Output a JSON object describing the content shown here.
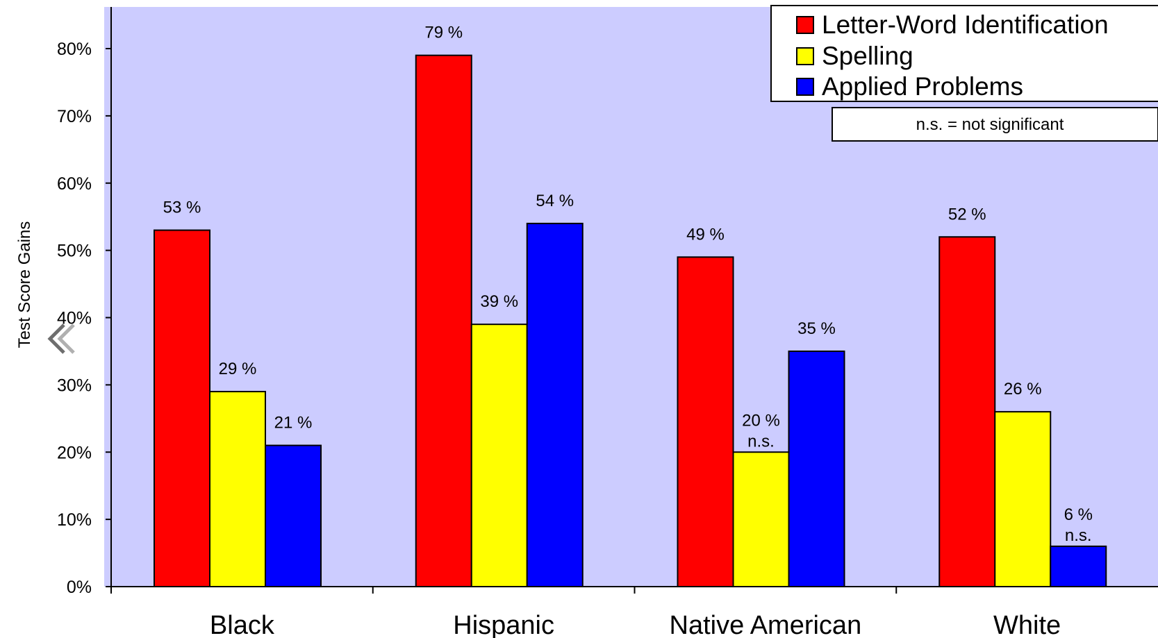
{
  "chart_data": {
    "type": "bar",
    "categories": [
      "Black",
      "Hispanic",
      "Native American",
      "White"
    ],
    "series": [
      {
        "name": "Letter-Word Identification",
        "color": "#ff0000",
        "values": [
          53,
          79,
          49,
          52
        ],
        "labels": [
          "53 %",
          "79 %",
          "49 %",
          "52 %"
        ]
      },
      {
        "name": "Spelling",
        "color": "#ffff00",
        "values": [
          29,
          39,
          20,
          26
        ],
        "labels": [
          "29 %",
          "39 %",
          "20 %",
          "26 %"
        ]
      },
      {
        "name": "Applied Problems",
        "color": "#0000ff",
        "values": [
          21,
          54,
          35,
          6
        ],
        "labels": [
          "21 %",
          "54 %",
          "35 %",
          "6 %"
        ]
      }
    ],
    "significance": [
      [
        "",
        "",
        ""
      ],
      [
        "",
        "",
        ""
      ],
      [
        "",
        "n.s.",
        ""
      ],
      [
        "",
        "",
        "n.s."
      ]
    ],
    "ylabel": "Test Score Gains",
    "yticks": [
      "0%",
      "10%",
      "20%",
      "30%",
      "40%",
      "50%",
      "60%",
      "70%",
      "80%"
    ],
    "ylim": [
      0,
      80
    ],
    "grid": false,
    "legend_position": "top-right",
    "note": "n.s. = not significant",
    "plot_background": "#ccccff"
  }
}
